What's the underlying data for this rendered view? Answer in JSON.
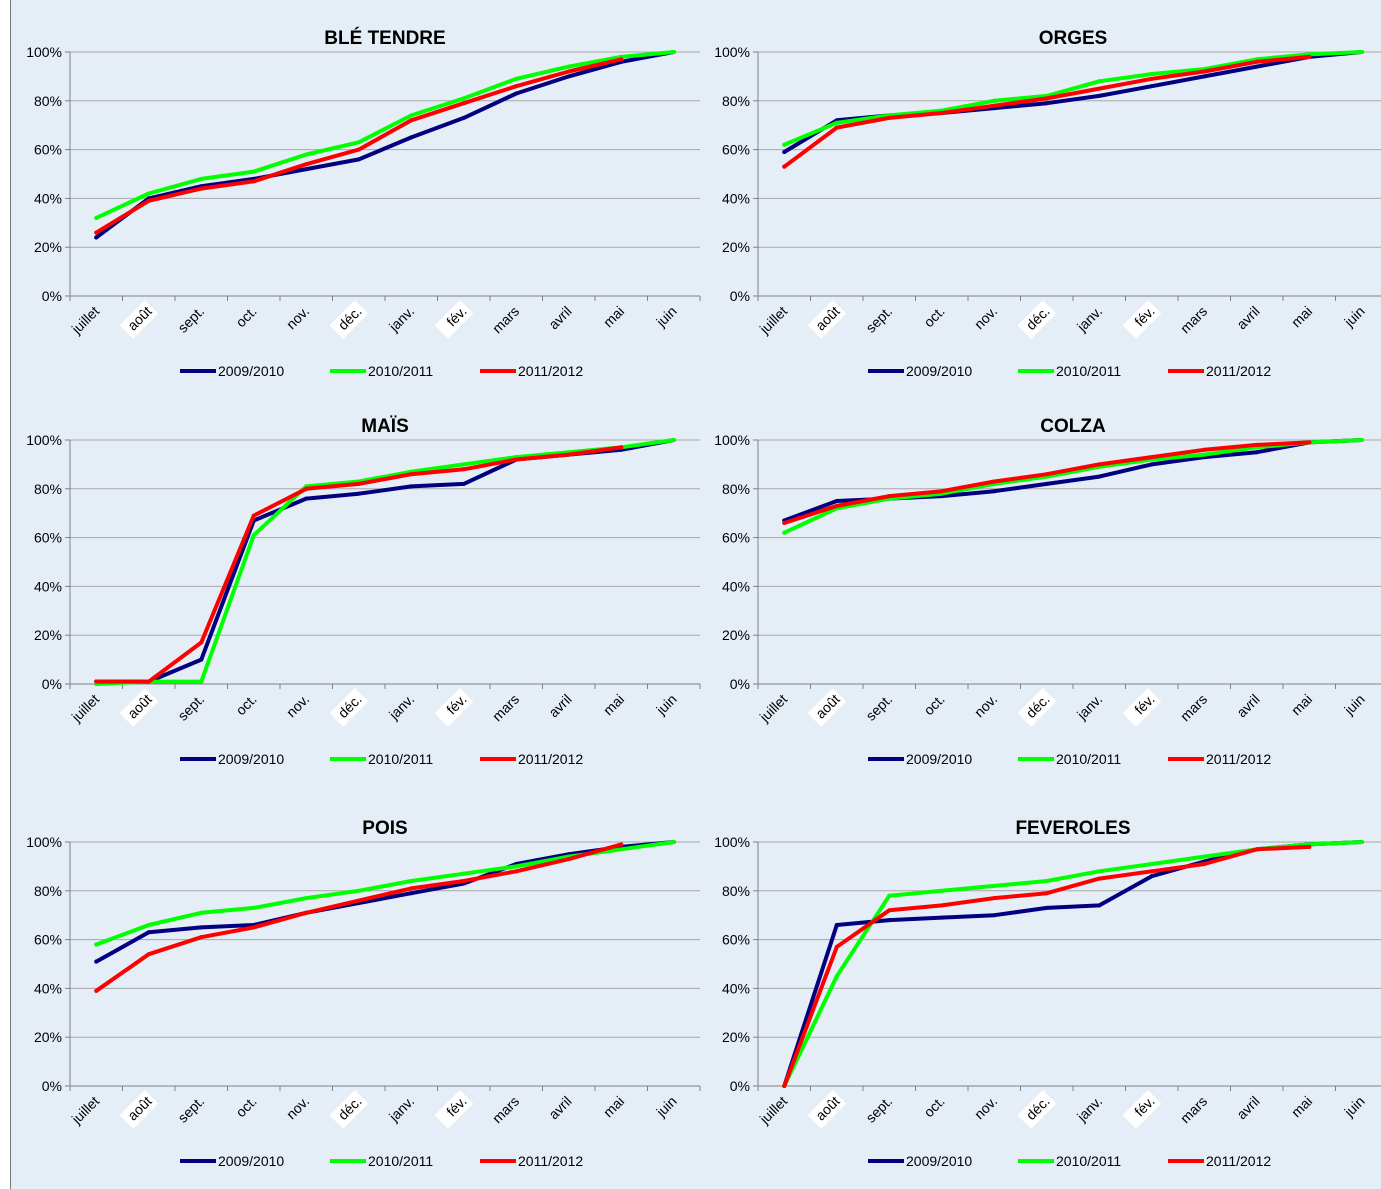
{
  "chart_data": [
    {
      "type": "line",
      "title": "BLÉ TENDRE",
      "categories": [
        "juillet",
        "août",
        "sept.",
        "oct.",
        "nov.",
        "déc.",
        "janv.",
        "fév.",
        "mars",
        "avril",
        "mai",
        "juin"
      ],
      "highlighted_categories": [
        "août",
        "déc.",
        "fév."
      ],
      "ylim": [
        0,
        100
      ],
      "yticks": [
        "0%",
        "20%",
        "40%",
        "60%",
        "80%",
        "100%"
      ],
      "grid": true,
      "legend": "bottom",
      "series": [
        {
          "name": "2009/2010",
          "color": "#000080",
          "values": [
            24,
            40,
            45,
            48,
            52,
            56,
            65,
            73,
            83,
            90,
            96,
            100
          ]
        },
        {
          "name": "2010/2011",
          "color": "#00ff00",
          "values": [
            32,
            42,
            48,
            51,
            58,
            63,
            74,
            81,
            89,
            94,
            98,
            100
          ]
        },
        {
          "name": "2011/2012",
          "color": "#ff0000",
          "values": [
            26,
            39,
            44,
            47,
            54,
            60,
            72,
            79,
            86,
            92,
            97,
            null
          ]
        }
      ]
    },
    {
      "type": "line",
      "title": "ORGES",
      "categories": [
        "juillet",
        "août",
        "sept.",
        "oct.",
        "nov.",
        "déc.",
        "janv.",
        "fév.",
        "mars",
        "avril",
        "mai",
        "juin"
      ],
      "highlighted_categories": [
        "août",
        "déc.",
        "fév."
      ],
      "ylim": [
        0,
        100
      ],
      "yticks": [
        "0%",
        "20%",
        "40%",
        "60%",
        "80%",
        "100%"
      ],
      "grid": true,
      "legend": "bottom",
      "series": [
        {
          "name": "2009/2010",
          "color": "#000080",
          "values": [
            59,
            72,
            74,
            75,
            77,
            79,
            82,
            86,
            90,
            94,
            98,
            100
          ]
        },
        {
          "name": "2010/2011",
          "color": "#00ff00",
          "values": [
            62,
            71,
            74,
            76,
            80,
            82,
            88,
            91,
            93,
            97,
            99,
            100
          ]
        },
        {
          "name": "2011/2012",
          "color": "#ff0000",
          "values": [
            53,
            69,
            73,
            75,
            78,
            81,
            85,
            89,
            92,
            96,
            98,
            null
          ]
        }
      ]
    },
    {
      "type": "line",
      "title": "MAÏS",
      "categories": [
        "juillet",
        "août",
        "sept.",
        "oct.",
        "nov.",
        "déc.",
        "janv.",
        "fév.",
        "mars",
        "avril",
        "mai",
        "juin"
      ],
      "highlighted_categories": [
        "août",
        "déc.",
        "fév."
      ],
      "ylim": [
        0,
        100
      ],
      "yticks": [
        "0%",
        "20%",
        "40%",
        "60%",
        "80%",
        "100%"
      ],
      "grid": true,
      "legend": "bottom",
      "series": [
        {
          "name": "2009/2010",
          "color": "#000080",
          "values": [
            1,
            1,
            10,
            67,
            76,
            78,
            81,
            82,
            92,
            94,
            96,
            100
          ]
        },
        {
          "name": "2010/2011",
          "color": "#00ff00",
          "values": [
            0,
            1,
            1,
            61,
            81,
            83,
            87,
            90,
            93,
            95,
            97,
            100
          ]
        },
        {
          "name": "2011/2012",
          "color": "#ff0000",
          "values": [
            1,
            1,
            17,
            69,
            80,
            82,
            86,
            88,
            92,
            94,
            97,
            null
          ]
        }
      ]
    },
    {
      "type": "line",
      "title": "COLZA",
      "categories": [
        "juillet",
        "août",
        "sept.",
        "oct.",
        "nov.",
        "déc.",
        "janv.",
        "fév.",
        "mars",
        "avril",
        "mai",
        "juin"
      ],
      "highlighted_categories": [
        "août",
        "déc.",
        "fév."
      ],
      "ylim": [
        0,
        100
      ],
      "yticks": [
        "0%",
        "20%",
        "40%",
        "60%",
        "80%",
        "100%"
      ],
      "grid": true,
      "legend": "bottom",
      "series": [
        {
          "name": "2009/2010",
          "color": "#000080",
          "values": [
            67,
            75,
            76,
            77,
            79,
            82,
            85,
            90,
            93,
            95,
            99,
            100
          ]
        },
        {
          "name": "2010/2011",
          "color": "#00ff00",
          "values": [
            62,
            72,
            76,
            78,
            82,
            85,
            89,
            92,
            94,
            97,
            99,
            100
          ]
        },
        {
          "name": "2011/2012",
          "color": "#ff0000",
          "values": [
            66,
            73,
            77,
            79,
            83,
            86,
            90,
            93,
            96,
            98,
            99,
            null
          ]
        }
      ]
    },
    {
      "type": "line",
      "title": "POIS",
      "categories": [
        "juillet",
        "août",
        "sept.",
        "oct.",
        "nov.",
        "déc.",
        "janv.",
        "fév.",
        "mars",
        "avril",
        "mai",
        "juin"
      ],
      "highlighted_categories": [
        "août",
        "déc.",
        "fév."
      ],
      "ylim": [
        0,
        100
      ],
      "yticks": [
        "0%",
        "20%",
        "40%",
        "60%",
        "80%",
        "100%"
      ],
      "grid": true,
      "legend": "bottom",
      "series": [
        {
          "name": "2009/2010",
          "color": "#000080",
          "values": [
            51,
            63,
            65,
            66,
            71,
            75,
            79,
            83,
            91,
            95,
            98,
            100
          ]
        },
        {
          "name": "2010/2011",
          "color": "#00ff00",
          "values": [
            58,
            66,
            71,
            73,
            77,
            80,
            84,
            87,
            90,
            94,
            97,
            100
          ]
        },
        {
          "name": "2011/2012",
          "color": "#ff0000",
          "values": [
            39,
            54,
            61,
            65,
            71,
            76,
            81,
            84,
            88,
            93,
            99,
            null
          ]
        }
      ]
    },
    {
      "type": "line",
      "title": "FEVEROLES",
      "categories": [
        "juillet",
        "août",
        "sept.",
        "oct.",
        "nov.",
        "déc.",
        "janv.",
        "fév.",
        "mars",
        "avril",
        "mai",
        "juin"
      ],
      "highlighted_categories": [
        "août",
        "déc.",
        "fév."
      ],
      "ylim": [
        0,
        100
      ],
      "yticks": [
        "0%",
        "20%",
        "40%",
        "60%",
        "80%",
        "100%"
      ],
      "grid": true,
      "legend": "bottom",
      "series": [
        {
          "name": "2009/2010",
          "color": "#000080",
          "values": [
            0,
            66,
            68,
            69,
            70,
            73,
            74,
            86,
            92,
            97,
            99,
            100
          ]
        },
        {
          "name": "2010/2011",
          "color": "#00ff00",
          "values": [
            0,
            45,
            78,
            80,
            82,
            84,
            88,
            91,
            94,
            97,
            99,
            100
          ]
        },
        {
          "name": "2011/2012",
          "color": "#ff0000",
          "values": [
            0,
            57,
            72,
            74,
            77,
            79,
            85,
            88,
            91,
            97,
            98,
            null
          ]
        }
      ]
    }
  ]
}
